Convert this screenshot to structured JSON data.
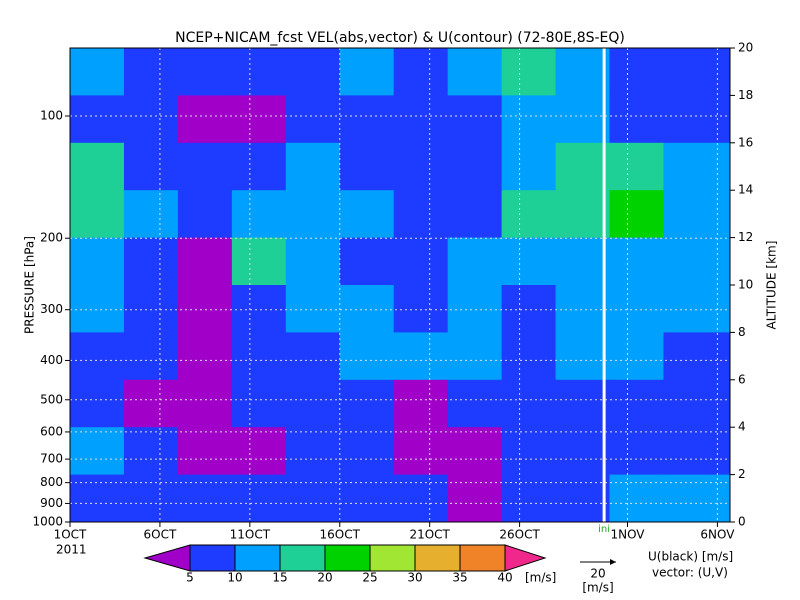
{
  "chart_data": {
    "type": "contour",
    "title": "NCEP+NICAM_fcst VEL(abs,vector) & U(contour)   (72-80E,8S-EQ)",
    "ylabel": "PRESSURE [hPa]",
    "y2label": "ALTITUDE [km]",
    "year": "2011",
    "xlim": [
      0,
      36.7
    ],
    "xticks": [
      {
        "value": 0,
        "label": "1OCT"
      },
      {
        "value": 5,
        "label": "6OCT"
      },
      {
        "value": 10,
        "label": "11OCT"
      },
      {
        "value": 15,
        "label": "16OCT"
      },
      {
        "value": 20,
        "label": "21OCT"
      },
      {
        "value": 25,
        "label": "26OCT"
      },
      {
        "value": 31,
        "label": "1NOV"
      },
      {
        "value": 36,
        "label": "6NOV"
      }
    ],
    "yscale": "log",
    "ylim": [
      1000,
      68
    ],
    "yticks": [
      100,
      200,
      300,
      400,
      500,
      600,
      700,
      800,
      900,
      1000
    ],
    "y2lim": [
      0,
      20
    ],
    "y2ticks": [
      0,
      2,
      4,
      6,
      8,
      10,
      12,
      14,
      16,
      18,
      20
    ],
    "grid": true,
    "init": {
      "value": 29.7,
      "label": "ini"
    },
    "field": {
      "x_edges": [
        0,
        3,
        6,
        9,
        12,
        15,
        18,
        21,
        24,
        27,
        30,
        33,
        36.7
      ],
      "z_edges": [
        20,
        18,
        16,
        14,
        12,
        10,
        8,
        6,
        4,
        2,
        0
      ],
      "speed": [
        [
          12,
          8,
          8,
          6,
          8,
          10,
          8,
          12,
          18,
          12,
          8,
          8
        ],
        [
          8,
          6,
          4,
          4,
          6,
          8,
          6,
          8,
          12,
          10,
          8,
          8
        ],
        [
          15,
          8,
          6,
          8,
          12,
          8,
          8,
          6,
          12,
          18,
          15,
          12
        ],
        [
          18,
          12,
          8,
          12,
          12,
          10,
          8,
          8,
          15,
          15,
          20,
          12
        ],
        [
          12,
          8,
          4,
          16,
          10,
          8,
          8,
          10,
          12,
          12,
          14,
          12
        ],
        [
          10,
          6,
          4,
          8,
          10,
          12,
          8,
          10,
          8,
          10,
          12,
          10
        ],
        [
          8,
          6,
          4,
          6,
          8,
          10,
          12,
          10,
          8,
          10,
          10,
          8
        ],
        [
          8,
          4,
          4,
          6,
          8,
          6,
          4,
          6,
          8,
          8,
          8,
          6
        ],
        [
          12,
          6,
          4,
          4,
          6,
          8,
          4,
          4,
          6,
          8,
          8,
          8
        ],
        [
          8,
          6,
          6,
          6,
          8,
          6,
          6,
          4,
          6,
          8,
          10,
          10
        ]
      ]
    },
    "colorbar": {
      "levels": [
        5,
        10,
        15,
        20,
        25,
        30,
        35,
        40
      ],
      "colors": [
        "#a000c8",
        "#1e3cff",
        "#00a0ff",
        "#1ecf96",
        "#00d200",
        "#a0e632",
        "#e6af2d",
        "#f08228",
        "#f0288c"
      ],
      "unit": "[m/s]"
    },
    "vector_key": {
      "value": 20,
      "unit": "[m/s]"
    },
    "legend_text": [
      "U(black) [m/s]",
      "vector: (U,V)"
    ]
  }
}
